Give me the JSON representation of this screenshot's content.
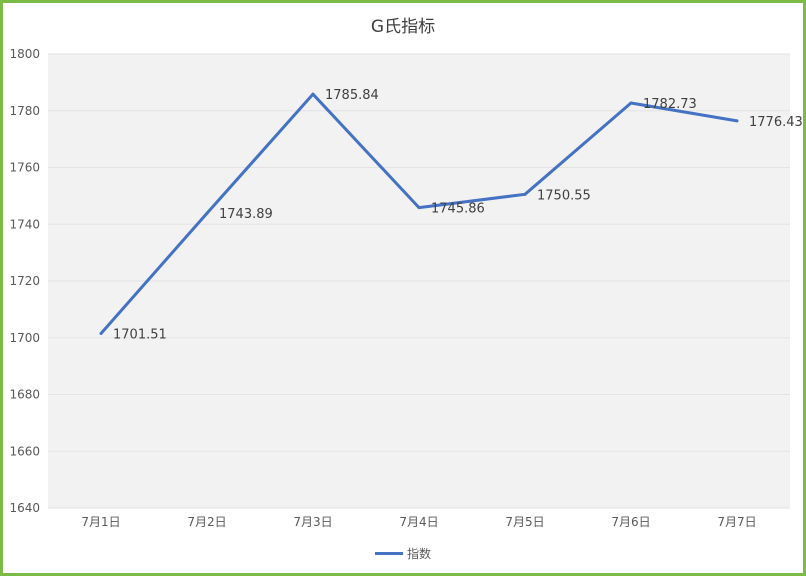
{
  "chart_data": {
    "type": "line",
    "title": "G氏指标",
    "categories": [
      "7月1日",
      "7月2日",
      "7月3日",
      "7月4日",
      "7月5日",
      "7月6日",
      "7月7日"
    ],
    "series": [
      {
        "name": "指数",
        "values": [
          1701.51,
          1743.89,
          1785.84,
          1745.86,
          1750.55,
          1782.73,
          1776.43
        ],
        "labels": [
          "1701.51",
          "1743.89",
          "1785.84",
          "1745.86",
          "1750.55",
          "1782.73",
          "1776.43"
        ],
        "color": "#4472c4"
      }
    ],
    "ylim": [
      1640,
      1800
    ],
    "yticks": [
      "1640",
      "1660",
      "1680",
      "1700",
      "1720",
      "1740",
      "1760",
      "1780",
      "1800"
    ],
    "grid": true,
    "legend_position": "bottom"
  },
  "colors": {
    "frame": "#7dbb47",
    "plot_background": "#f2f2f2",
    "gridline": "#e3e3e3"
  }
}
